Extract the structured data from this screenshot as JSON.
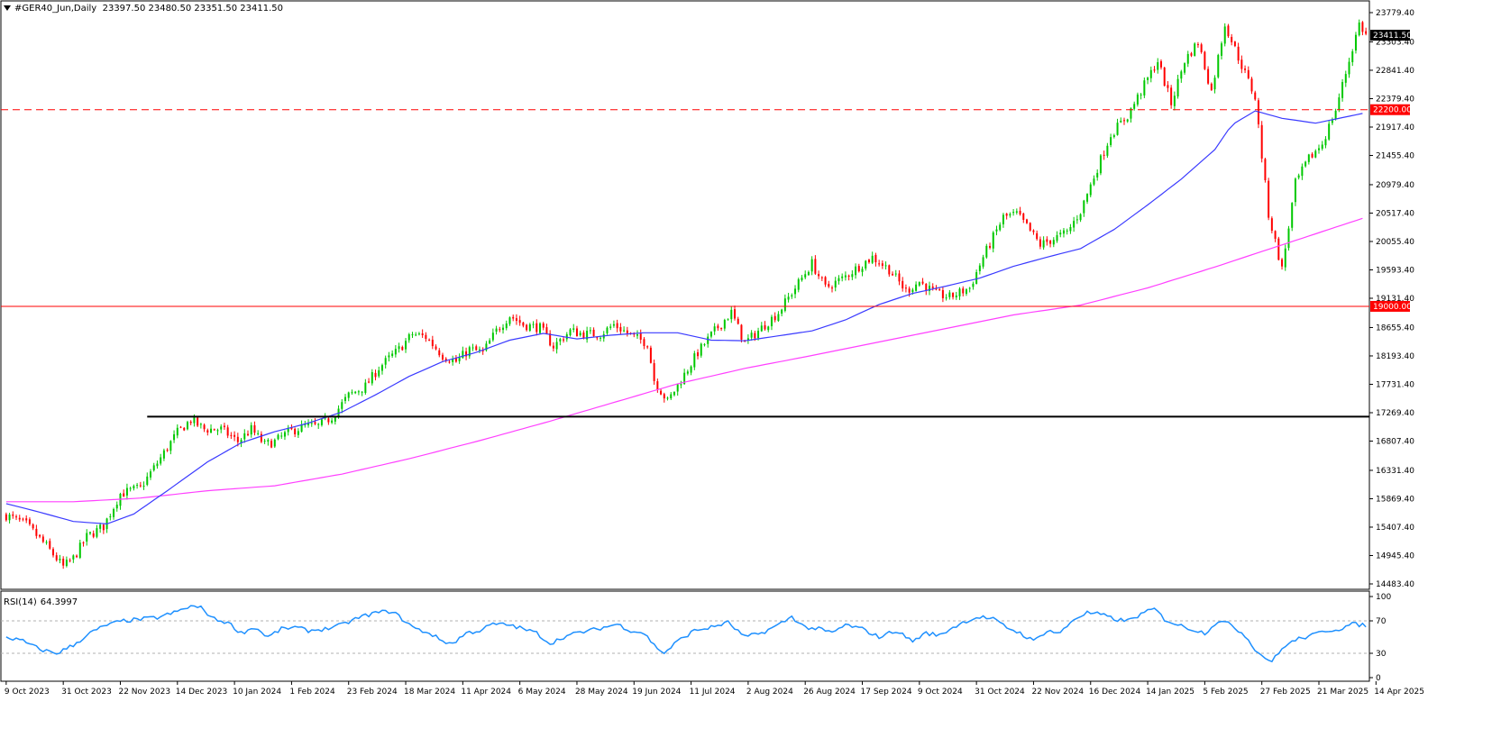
{
  "header": {
    "symbol": "#GER40_Jun,Daily",
    "ohlc": "23397.50 23480.50 23351.50 23411.50"
  },
  "rsi_header": {
    "label": "RSI(14)",
    "value": "64.3997"
  },
  "colors": {
    "bull": "#00c800",
    "bear": "#ff0000",
    "ma_fast": "#3a3aff",
    "ma_slow": "#ff40ff",
    "support": "#000000",
    "line_19000": "#ff0000",
    "line_22200": "#ff0000",
    "rsi": "#1e90ff",
    "current_price_bg": "#000000"
  },
  "chart_data": [
    {
      "type": "candlestick",
      "title": "#GER40_Jun,Daily",
      "x_ticks": [
        "9 Oct 2023",
        "31 Oct 2023",
        "22 Nov 2023",
        "14 Dec 2023",
        "10 Jan 2024",
        "1 Feb 2024",
        "23 Feb 2024",
        "18 Mar 2024",
        "11 Apr 2024",
        "6 May 2024",
        "28 May 2024",
        "19 Jun 2024",
        "11 Jul 2024",
        "2 Aug 2024",
        "26 Aug 2024",
        "17 Sep 2024",
        "9 Oct 2024",
        "31 Oct 2024",
        "22 Nov 2024",
        "16 Dec 2024",
        "14 Jan 2025",
        "5 Feb 2025",
        "27 Feb 2025",
        "21 Mar 2025",
        "14 Apr 2025"
      ],
      "y_ticks": [
        "23779.40",
        "23303.40",
        "22841.40",
        "22379.40",
        "21917.40",
        "21455.40",
        "20979.40",
        "20517.40",
        "20055.40",
        "19593.40",
        "19131.40",
        "18655.40",
        "18193.40",
        "17731.40",
        "17269.40",
        "16807.40",
        "16331.40",
        "15869.40",
        "15407.40",
        "14945.40",
        "14483.40"
      ],
      "ylim": [
        14483.4,
        23779.4
      ],
      "price_path": [
        [
          0,
          15600
        ],
        [
          6,
          15450
        ],
        [
          12,
          15100
        ],
        [
          17,
          14760
        ],
        [
          20,
          14900
        ],
        [
          24,
          15250
        ],
        [
          29,
          15420
        ],
        [
          34,
          15950
        ],
        [
          40,
          16050
        ],
        [
          45,
          16450
        ],
        [
          51,
          16950
        ],
        [
          55,
          17150
        ],
        [
          59,
          17000
        ],
        [
          64,
          17000
        ],
        [
          69,
          16800
        ],
        [
          73,
          17000
        ],
        [
          77,
          16750
        ],
        [
          80,
          16800
        ],
        [
          84,
          16950
        ],
        [
          89,
          17050
        ],
        [
          93,
          17050
        ],
        [
          97,
          17200
        ],
        [
          102,
          17550
        ],
        [
          107,
          17700
        ],
        [
          111,
          18000
        ],
        [
          117,
          18300
        ],
        [
          121,
          18550
        ],
        [
          125,
          18500
        ],
        [
          130,
          18200
        ],
        [
          134,
          18100
        ],
        [
          138,
          18300
        ],
        [
          142,
          18250
        ],
        [
          146,
          18600
        ],
        [
          150,
          18850
        ],
        [
          154,
          18700
        ],
        [
          159,
          18650
        ],
        [
          163,
          18350
        ],
        [
          168,
          18600
        ],
        [
          172,
          18550
        ],
        [
          177,
          18550
        ],
        [
          181,
          18700
        ],
        [
          187,
          18500
        ],
        [
          191,
          18400
        ],
        [
          193,
          17800
        ],
        [
          197,
          17450
        ],
        [
          201,
          17800
        ],
        [
          206,
          18250
        ],
        [
          211,
          18600
        ],
        [
          216,
          18900
        ],
        [
          220,
          18400
        ],
        [
          225,
          18650
        ],
        [
          230,
          18900
        ],
        [
          235,
          19300
        ],
        [
          240,
          19700
        ],
        [
          244,
          19300
        ],
        [
          249,
          19450
        ],
        [
          254,
          19650
        ],
        [
          258,
          19800
        ],
        [
          263,
          19600
        ],
        [
          268,
          19250
        ],
        [
          272,
          19400
        ],
        [
          277,
          19200
        ],
        [
          281,
          19150
        ],
        [
          287,
          19300
        ],
        [
          291,
          19800
        ],
        [
          297,
          20450
        ],
        [
          301,
          20500
        ],
        [
          304,
          20300
        ],
        [
          308,
          20000
        ],
        [
          312,
          20100
        ],
        [
          316,
          20200
        ],
        [
          320,
          20550
        ],
        [
          325,
          21250
        ],
        [
          329,
          21800
        ],
        [
          334,
          22100
        ],
        [
          339,
          22600
        ],
        [
          343,
          23000
        ],
        [
          347,
          22300
        ],
        [
          351,
          23000
        ],
        [
          355,
          23300
        ],
        [
          359,
          22500
        ],
        [
          363,
          23600
        ],
        [
          367,
          23050
        ],
        [
          372,
          22400
        ],
        [
          376,
          20500
        ],
        [
          380,
          19600
        ],
        [
          384,
          21000
        ],
        [
          388,
          21400
        ],
        [
          392,
          21650
        ],
        [
          396,
          22200
        ],
        [
          400,
          23000
        ],
        [
          403,
          23600
        ],
        [
          405,
          23411.5
        ]
      ],
      "ma_fast_path": [
        [
          0,
          15790
        ],
        [
          10,
          15650
        ],
        [
          20,
          15500
        ],
        [
          30,
          15460
        ],
        [
          38,
          15620
        ],
        [
          48,
          16000
        ],
        [
          60,
          16470
        ],
        [
          70,
          16780
        ],
        [
          80,
          16960
        ],
        [
          90,
          17100
        ],
        [
          100,
          17280
        ],
        [
          110,
          17560
        ],
        [
          120,
          17860
        ],
        [
          130,
          18100
        ],
        [
          140,
          18250
        ],
        [
          150,
          18450
        ],
        [
          160,
          18560
        ],
        [
          170,
          18470
        ],
        [
          180,
          18530
        ],
        [
          190,
          18570
        ],
        [
          200,
          18570
        ],
        [
          210,
          18450
        ],
        [
          220,
          18440
        ],
        [
          230,
          18520
        ],
        [
          240,
          18600
        ],
        [
          250,
          18780
        ],
        [
          260,
          19030
        ],
        [
          270,
          19210
        ],
        [
          280,
          19330
        ],
        [
          290,
          19460
        ],
        [
          300,
          19650
        ],
        [
          310,
          19800
        ],
        [
          320,
          19940
        ],
        [
          330,
          20250
        ],
        [
          340,
          20650
        ],
        [
          350,
          21070
        ],
        [
          360,
          21550
        ],
        [
          365,
          21950
        ],
        [
          372,
          22180
        ],
        [
          380,
          22060
        ],
        [
          390,
          21980
        ],
        [
          405,
          22150
        ]
      ],
      "ma_slow_path": [
        [
          0,
          15820
        ],
        [
          20,
          15820
        ],
        [
          40,
          15880
        ],
        [
          60,
          16000
        ],
        [
          80,
          16080
        ],
        [
          100,
          16270
        ],
        [
          120,
          16520
        ],
        [
          140,
          16800
        ],
        [
          160,
          17100
        ],
        [
          180,
          17420
        ],
        [
          200,
          17740
        ],
        [
          220,
          17990
        ],
        [
          240,
          18200
        ],
        [
          260,
          18420
        ],
        [
          280,
          18640
        ],
        [
          300,
          18860
        ],
        [
          320,
          19020
        ],
        [
          340,
          19300
        ],
        [
          360,
          19640
        ],
        [
          380,
          20000
        ],
        [
          405,
          20450
        ]
      ],
      "levels": [
        {
          "value": 22200,
          "label": "22200.00",
          "style": "dashed"
        },
        {
          "value": 19000,
          "label": "19000.00",
          "style": "solid"
        },
        {
          "value": 17206,
          "label": "",
          "style": "solid"
        }
      ],
      "current_price": "23411.50"
    },
    {
      "type": "line",
      "title": "RSI(14) 64.3997",
      "y_ticks": [
        "100",
        "70",
        "30",
        "0"
      ],
      "ylim": [
        0,
        100
      ],
      "levels": [
        70,
        30
      ],
      "series": [
        {
          "values": [
            [
              0,
              50
            ],
            [
              5,
              45
            ],
            [
              10,
              35
            ],
            [
              15,
              30
            ],
            [
              20,
              40
            ],
            [
              25,
              55
            ],
            [
              30,
              65
            ],
            [
              35,
              70
            ],
            [
              40,
              72
            ],
            [
              45,
              74
            ],
            [
              50,
              80
            ],
            [
              55,
              88
            ],
            [
              58,
              86
            ],
            [
              62,
              72
            ],
            [
              66,
              68
            ],
            [
              70,
              55
            ],
            [
              74,
              62
            ],
            [
              78,
              50
            ],
            [
              82,
              60
            ],
            [
              86,
              62
            ],
            [
              90,
              58
            ],
            [
              95,
              60
            ],
            [
              100,
              65
            ],
            [
              105,
              74
            ],
            [
              110,
              80
            ],
            [
              115,
              82
            ],
            [
              118,
              72
            ],
            [
              122,
              60
            ],
            [
              126,
              55
            ],
            [
              130,
              45
            ],
            [
              133,
              42
            ],
            [
              137,
              55
            ],
            [
              141,
              58
            ],
            [
              145,
              66
            ],
            [
              150,
              65
            ],
            [
              154,
              60
            ],
            [
              158,
              55
            ],
            [
              162,
              42
            ],
            [
              166,
              50
            ],
            [
              170,
              55
            ],
            [
              174,
              58
            ],
            [
              178,
              62
            ],
            [
              182,
              66
            ],
            [
              186,
              58
            ],
            [
              190,
              55
            ],
            [
              193,
              40
            ],
            [
              196,
              30
            ],
            [
              200,
              45
            ],
            [
              205,
              58
            ],
            [
              210,
              62
            ],
            [
              215,
              68
            ],
            [
              220,
              50
            ],
            [
              225,
              55
            ],
            [
              230,
              65
            ],
            [
              234,
              75
            ],
            [
              238,
              62
            ],
            [
              242,
              60
            ],
            [
              246,
              55
            ],
            [
              250,
              65
            ],
            [
              255,
              60
            ],
            [
              260,
              50
            ],
            [
              265,
              58
            ],
            [
              270,
              45
            ],
            [
              274,
              55
            ],
            [
              278,
              52
            ],
            [
              282,
              62
            ],
            [
              286,
              70
            ],
            [
              290,
              75
            ],
            [
              294,
              72
            ],
            [
              298,
              62
            ],
            [
              302,
              55
            ],
            [
              306,
              45
            ],
            [
              310,
              58
            ],
            [
              314,
              55
            ],
            [
              318,
              72
            ],
            [
              322,
              80
            ],
            [
              326,
              78
            ],
            [
              330,
              72
            ],
            [
              334,
              70
            ],
            [
              338,
              78
            ],
            [
              342,
              85
            ],
            [
              345,
              72
            ],
            [
              349,
              65
            ],
            [
              353,
              60
            ],
            [
              357,
              55
            ],
            [
              361,
              70
            ],
            [
              365,
              65
            ],
            [
              369,
              52
            ],
            [
              373,
              30
            ],
            [
              377,
              20
            ],
            [
              381,
              40
            ],
            [
              385,
              48
            ],
            [
              389,
              52
            ],
            [
              393,
              58
            ],
            [
              397,
              60
            ],
            [
              401,
              66
            ],
            [
              405,
              64.3997
            ]
          ]
        }
      ]
    }
  ]
}
